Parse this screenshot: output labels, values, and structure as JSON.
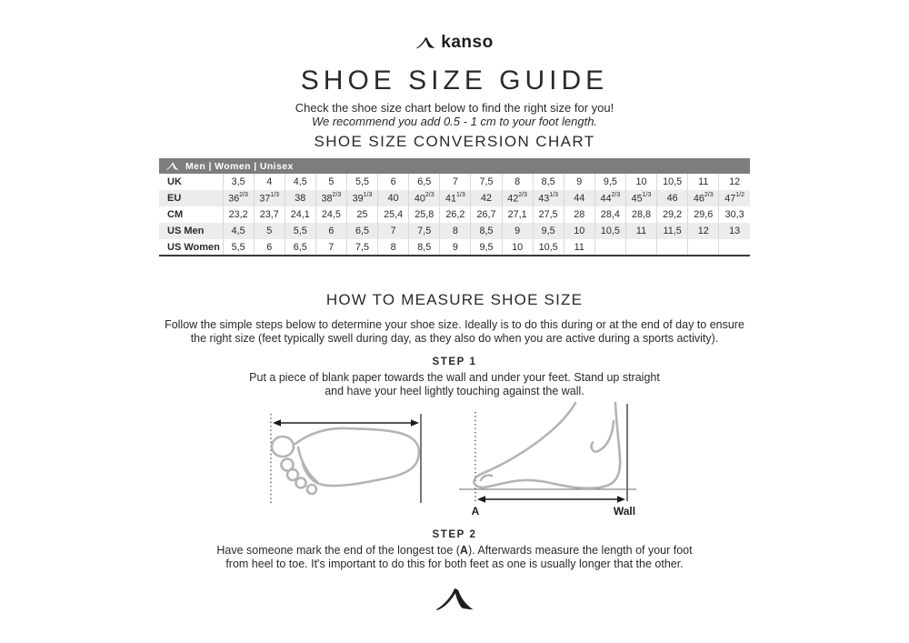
{
  "brand": {
    "name": "kanso"
  },
  "page": {
    "title": "SHOE SIZE GUIDE",
    "subtitle": "Check the shoe size chart below to find the right size for you!",
    "recommendation": "We recommend you add 0.5 - 1 cm to your foot length."
  },
  "chart": {
    "heading": "SHOE SIZE CONVERSION CHART",
    "audience": "Men | Women | Unisex",
    "rows": [
      {
        "label": "UK",
        "values": [
          "3,5",
          "4",
          "4,5",
          "5",
          "5,5",
          "6",
          "6,5",
          "7",
          "7,5",
          "8",
          "8,5",
          "9",
          "9,5",
          "10",
          "10,5",
          "11",
          "12"
        ]
      },
      {
        "label": "EU",
        "values": [
          "36^2/3",
          "37^1/3",
          "38",
          "38^2/3",
          "39^1/3",
          "40",
          "40^2/3",
          "41^1/3",
          "42",
          "42^2/3",
          "43^1/3",
          "44",
          "44^2/3",
          "45^1/3",
          "46",
          "46^2/3",
          "47^1/2"
        ]
      },
      {
        "label": "CM",
        "values": [
          "23,2",
          "23,7",
          "24,1",
          "24,5",
          "25",
          "25,4",
          "25,8",
          "26,2",
          "26,7",
          "27,1",
          "27,5",
          "28",
          "28,4",
          "28,8",
          "29,2",
          "29,6",
          "30,3"
        ]
      },
      {
        "label": "US Men",
        "values": [
          "4,5",
          "5",
          "5,5",
          "6",
          "6,5",
          "7",
          "7,5",
          "8",
          "8,5",
          "9",
          "9,5",
          "10",
          "10,5",
          "11",
          "11,5",
          "12",
          "13"
        ]
      },
      {
        "label": "US Women",
        "values": [
          "5,5",
          "6",
          "6,5",
          "7",
          "7,5",
          "8",
          "8,5",
          "9",
          "9,5",
          "10",
          "10,5",
          "11",
          "",
          "",
          "",
          "",
          ""
        ]
      }
    ]
  },
  "measure": {
    "heading": "HOW TO MEASURE SHOE SIZE",
    "intro_line1": "Follow the simple steps below to determine your shoe size. Ideally is to do this during or at the end of day to ensure",
    "intro_line2": "the right size (feet typically swell during day, as they also do when you are active during a sports activity).",
    "step1": {
      "title": "STEP 1",
      "line1": "Put a piece of blank paper towards the wall and under your feet. Stand up straight",
      "line2": "and have your heel lightly touching against the wall."
    },
    "step2": {
      "title": "STEP 2",
      "line1_pre": "Have someone mark the end of the longest toe (",
      "line1_marker": "A",
      "line1_post": "). Afterwards measure the length of your foot",
      "line2": "from heel to toe. It's important to do this for both feet as one is usually longer that the other."
    },
    "diagram": {
      "label_a": "A",
      "label_wall": "Wall"
    }
  },
  "colors": {
    "ink": "#2b2a29",
    "table_header_bar": "#7d7d7d",
    "table_stripe": "#ececec",
    "cell_divider": "#d9d9d9",
    "foot_outline": "#b4b4b4"
  }
}
